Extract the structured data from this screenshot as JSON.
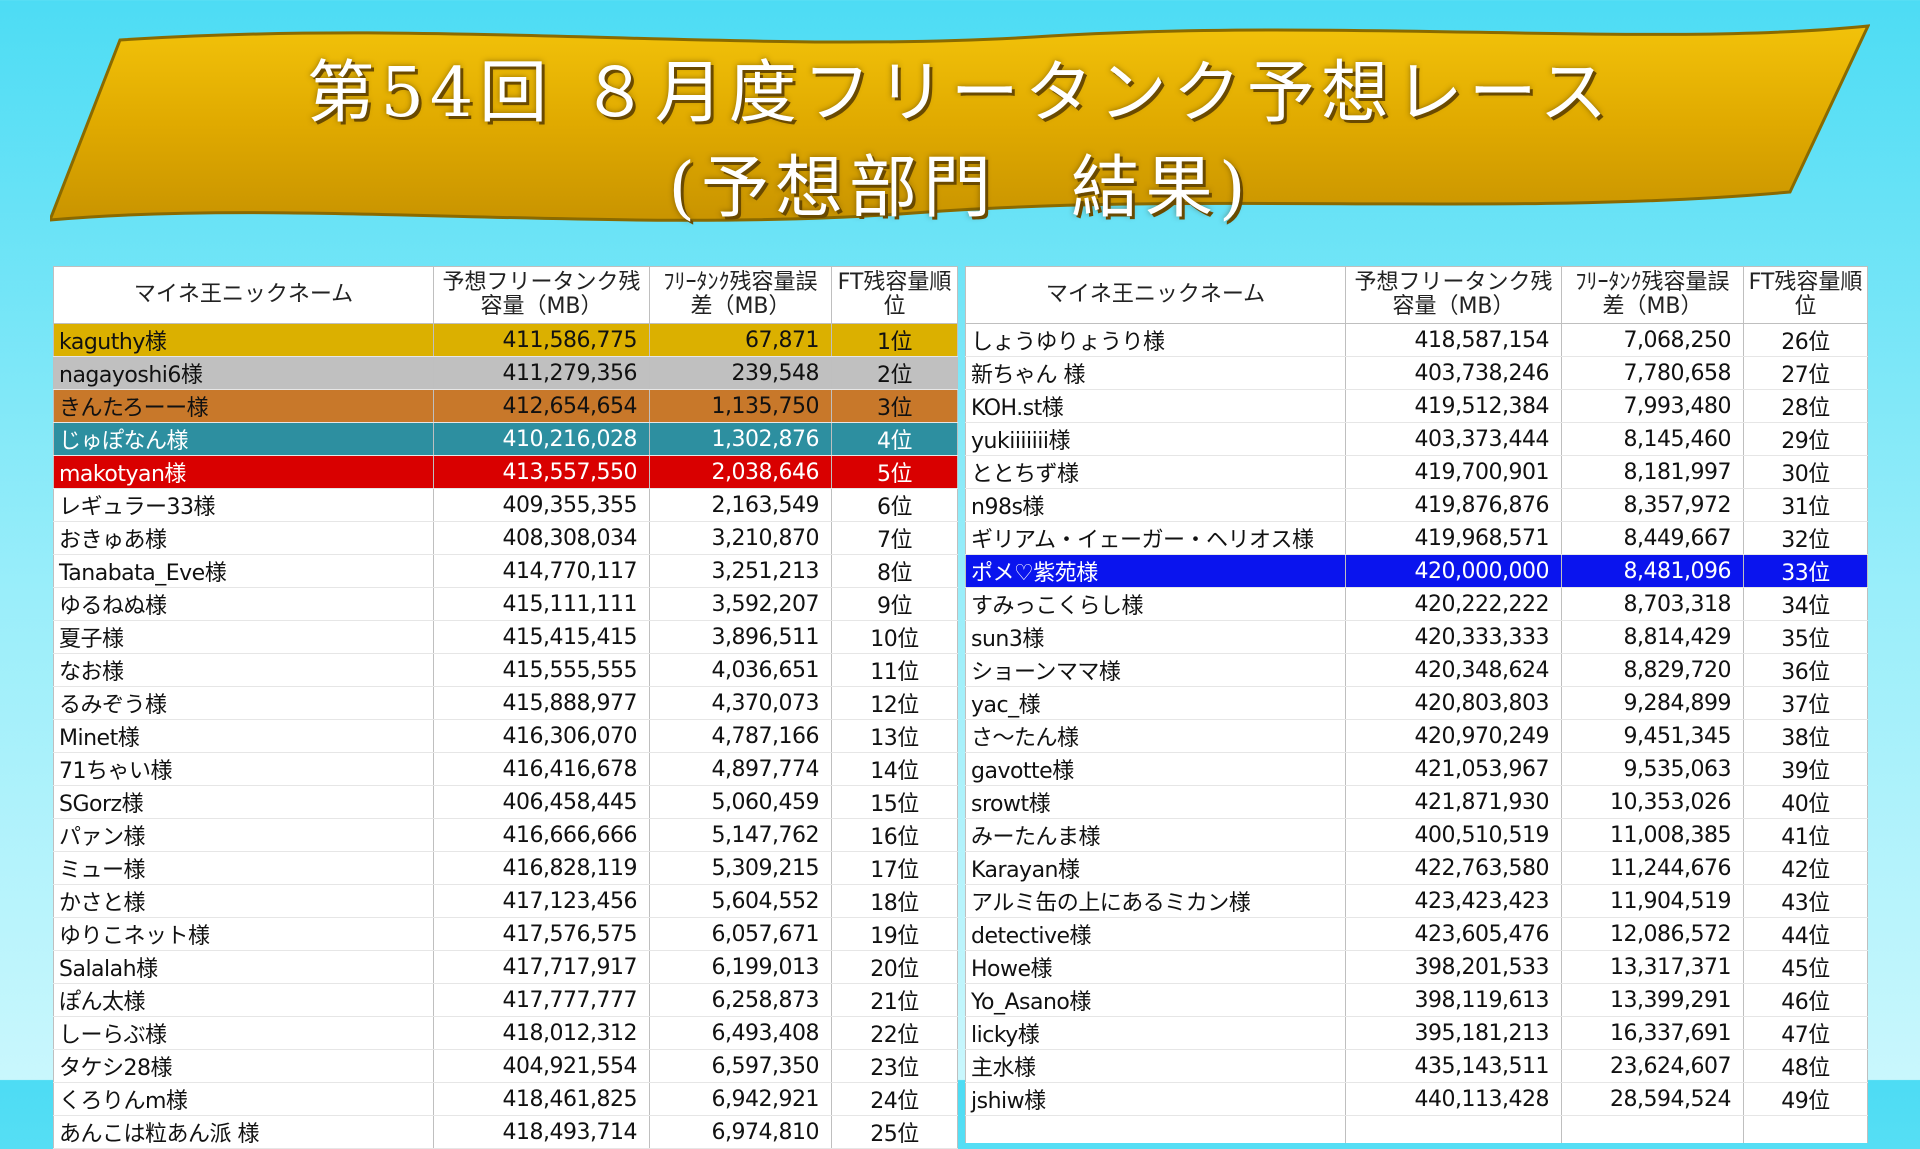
{
  "title": {
    "line1": "第54回 ８月度フリータンク予想レース",
    "line2": "(予想部門　結果)"
  },
  "colors": {
    "banner": "#e8b600",
    "gold": "#dbb000",
    "silver": "#c0c0c0",
    "bronze": "#c8782a",
    "teal": "#2d8fa0",
    "red": "#d90000",
    "blue": "#0a14ee"
  },
  "headers": {
    "name": "マイネ王ニックネーム",
    "prediction": "予想フリータンク残容量（MB）",
    "diff": "ﾌﾘｰﾀﾝｸ残容量誤差（MB）",
    "rank": "FT残容量順位"
  },
  "left_rows": [
    {
      "name": "kaguthy様",
      "prediction": "411,586,775",
      "diff": "67,871",
      "rank": "1位",
      "hl": "gold"
    },
    {
      "name": "nagayoshi6様",
      "prediction": "411,279,356",
      "diff": "239,548",
      "rank": "2位",
      "hl": "silver"
    },
    {
      "name": "きんたろーー様",
      "prediction": "412,654,654",
      "diff": "1,135,750",
      "rank": "3位",
      "hl": "bronze"
    },
    {
      "name": "じゅぽなん様",
      "prediction": "410,216,028",
      "diff": "1,302,876",
      "rank": "4位",
      "hl": "teal"
    },
    {
      "name": "makotyan様",
      "prediction": "413,557,550",
      "diff": "2,038,646",
      "rank": "5位",
      "hl": "red"
    },
    {
      "name": "レギュラー33様",
      "prediction": "409,355,355",
      "diff": "2,163,549",
      "rank": "6位",
      "hl": ""
    },
    {
      "name": "おきゅあ様",
      "prediction": "408,308,034",
      "diff": "3,210,870",
      "rank": "7位",
      "hl": ""
    },
    {
      "name": "Tanabata_Eve様",
      "prediction": "414,770,117",
      "diff": "3,251,213",
      "rank": "8位",
      "hl": ""
    },
    {
      "name": "ゆるねぬ様",
      "prediction": "415,111,111",
      "diff": "3,592,207",
      "rank": "9位",
      "hl": ""
    },
    {
      "name": "夏子様",
      "prediction": "415,415,415",
      "diff": "3,896,511",
      "rank": "10位",
      "hl": ""
    },
    {
      "name": "なお様",
      "prediction": "415,555,555",
      "diff": "4,036,651",
      "rank": "11位",
      "hl": ""
    },
    {
      "name": "るみぞう様",
      "prediction": "415,888,977",
      "diff": "4,370,073",
      "rank": "12位",
      "hl": ""
    },
    {
      "name": "Minet様",
      "prediction": "416,306,070",
      "diff": "4,787,166",
      "rank": "13位",
      "hl": ""
    },
    {
      "name": "71ちゃい様",
      "prediction": "416,416,678",
      "diff": "4,897,774",
      "rank": "14位",
      "hl": ""
    },
    {
      "name": "SGorz様",
      "prediction": "406,458,445",
      "diff": "5,060,459",
      "rank": "15位",
      "hl": ""
    },
    {
      "name": "パァン様",
      "prediction": "416,666,666",
      "diff": "5,147,762",
      "rank": "16位",
      "hl": ""
    },
    {
      "name": "ミュー様",
      "prediction": "416,828,119",
      "diff": "5,309,215",
      "rank": "17位",
      "hl": ""
    },
    {
      "name": "かさと様",
      "prediction": "417,123,456",
      "diff": "5,604,552",
      "rank": "18位",
      "hl": ""
    },
    {
      "name": "ゆりこネット様",
      "prediction": "417,576,575",
      "diff": "6,057,671",
      "rank": "19位",
      "hl": ""
    },
    {
      "name": "Salalah様",
      "prediction": "417,717,917",
      "diff": "6,199,013",
      "rank": "20位",
      "hl": ""
    },
    {
      "name": "ぽん太様",
      "prediction": "417,777,777",
      "diff": "6,258,873",
      "rank": "21位",
      "hl": ""
    },
    {
      "name": "しーらぶ様",
      "prediction": "418,012,312",
      "diff": "6,493,408",
      "rank": "22位",
      "hl": ""
    },
    {
      "name": "タケシ28様",
      "prediction": "404,921,554",
      "diff": "6,597,350",
      "rank": "23位",
      "hl": ""
    },
    {
      "name": "くろりんm様",
      "prediction": "418,461,825",
      "diff": "6,942,921",
      "rank": "24位",
      "hl": ""
    },
    {
      "name": "あんこは粒あん派 様",
      "prediction": "418,493,714",
      "diff": "6,974,810",
      "rank": "25位",
      "hl": ""
    }
  ],
  "right_rows": [
    {
      "name": "しょうゆりょうり様",
      "prediction": "418,587,154",
      "diff": "7,068,250",
      "rank": "26位",
      "hl": ""
    },
    {
      "name": "新ちゃん 様",
      "prediction": "403,738,246",
      "diff": "7,780,658",
      "rank": "27位",
      "hl": ""
    },
    {
      "name": "KOH.st様",
      "prediction": "419,512,384",
      "diff": "7,993,480",
      "rank": "28位",
      "hl": ""
    },
    {
      "name": "yukiiiiiii様",
      "prediction": "403,373,444",
      "diff": "8,145,460",
      "rank": "29位",
      "hl": ""
    },
    {
      "name": "ととちず様",
      "prediction": "419,700,901",
      "diff": "8,181,997",
      "rank": "30位",
      "hl": ""
    },
    {
      "name": "n98s様",
      "prediction": "419,876,876",
      "diff": "8,357,972",
      "rank": "31位",
      "hl": ""
    },
    {
      "name": "ギリアム・イェーガー・ヘリオス様",
      "prediction": "419,968,571",
      "diff": "8,449,667",
      "rank": "32位",
      "hl": ""
    },
    {
      "name": "ポメ♡紫苑様",
      "prediction": "420,000,000",
      "diff": "8,481,096",
      "rank": "33位",
      "hl": "blue"
    },
    {
      "name": "すみっこくらし様",
      "prediction": "420,222,222",
      "diff": "8,703,318",
      "rank": "34位",
      "hl": ""
    },
    {
      "name": "sun3様",
      "prediction": "420,333,333",
      "diff": "8,814,429",
      "rank": "35位",
      "hl": ""
    },
    {
      "name": "ショーンママ様",
      "prediction": "420,348,624",
      "diff": "8,829,720",
      "rank": "36位",
      "hl": ""
    },
    {
      "name": "yac_様",
      "prediction": "420,803,803",
      "diff": "9,284,899",
      "rank": "37位",
      "hl": ""
    },
    {
      "name": "さ～たん様",
      "prediction": "420,970,249",
      "diff": "9,451,345",
      "rank": "38位",
      "hl": ""
    },
    {
      "name": "gavotte様",
      "prediction": "421,053,967",
      "diff": "9,535,063",
      "rank": "39位",
      "hl": ""
    },
    {
      "name": "srowt様",
      "prediction": "421,871,930",
      "diff": "10,353,026",
      "rank": "40位",
      "hl": ""
    },
    {
      "name": "みーたんま様",
      "prediction": "400,510,519",
      "diff": "11,008,385",
      "rank": "41位",
      "hl": ""
    },
    {
      "name": "Karayan様",
      "prediction": "422,763,580",
      "diff": "11,244,676",
      "rank": "42位",
      "hl": ""
    },
    {
      "name": "アルミ缶の上にあるミカン様",
      "prediction": "423,423,423",
      "diff": "11,904,519",
      "rank": "43位",
      "hl": ""
    },
    {
      "name": "detective様",
      "prediction": "423,605,476",
      "diff": "12,086,572",
      "rank": "44位",
      "hl": ""
    },
    {
      "name": "Howe様",
      "prediction": "398,201,533",
      "diff": "13,317,371",
      "rank": "45位",
      "hl": ""
    },
    {
      "name": "Yo_Asano様",
      "prediction": "398,119,613",
      "diff": "13,399,291",
      "rank": "46位",
      "hl": ""
    },
    {
      "name": "licky様",
      "prediction": "395,181,213",
      "diff": "16,337,691",
      "rank": "47位",
      "hl": ""
    },
    {
      "name": "主水様",
      "prediction": "435,143,511",
      "diff": "23,624,607",
      "rank": "48位",
      "hl": ""
    },
    {
      "name": "jshiw様",
      "prediction": "440,113,428",
      "diff": "28,594,524",
      "rank": "49位",
      "hl": ""
    }
  ]
}
